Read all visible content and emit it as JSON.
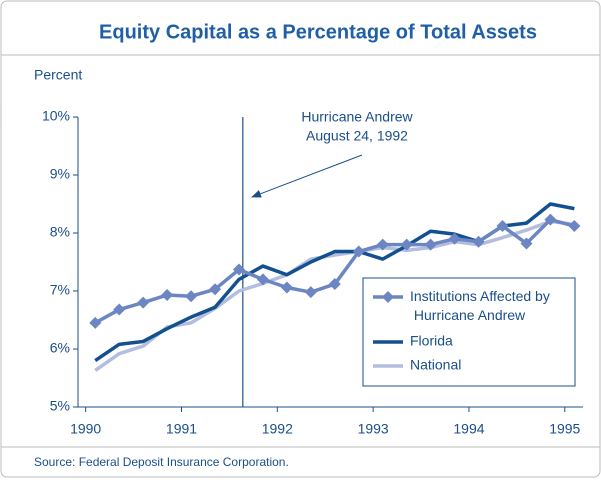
{
  "chart_data": {
    "type": "line",
    "title": "Equity Capital as a Percentage of Total Assets",
    "y_label": "Percent",
    "source": "Source: Federal Deposit Insurance Corporation.",
    "x": [
      1990.1,
      1990.35,
      1990.6,
      1990.85,
      1991.1,
      1991.35,
      1991.6,
      1991.85,
      1992.1,
      1992.35,
      1992.6,
      1992.85,
      1993.1,
      1993.35,
      1993.6,
      1993.85,
      1994.1,
      1994.35,
      1994.6,
      1994.85,
      1995.1
    ],
    "series": [
      {
        "name": "Institutions Affected by Hurricane Andrew",
        "color": "#6b86c2",
        "marker": true,
        "values": [
          6.45,
          6.68,
          6.8,
          6.93,
          6.91,
          7.03,
          7.37,
          7.2,
          7.06,
          6.98,
          7.12,
          7.68,
          7.8,
          7.8,
          7.8,
          7.9,
          7.85,
          8.12,
          7.82,
          8.23,
          8.12
        ]
      },
      {
        "name": "Florida",
        "color": "#13508f",
        "marker": false,
        "values": [
          5.8,
          6.08,
          6.13,
          6.35,
          6.55,
          6.72,
          7.2,
          7.43,
          7.28,
          7.5,
          7.68,
          7.68,
          7.55,
          7.78,
          8.03,
          7.98,
          7.85,
          8.12,
          8.17,
          8.5,
          8.42
        ]
      },
      {
        "name": "National",
        "color": "#b3bde0",
        "marker": false,
        "values": [
          5.63,
          5.92,
          6.05,
          6.38,
          6.45,
          6.7,
          7.0,
          7.13,
          7.28,
          7.55,
          7.62,
          7.68,
          7.75,
          7.7,
          7.75,
          7.85,
          7.8,
          7.92,
          8.05,
          8.2,
          8.15
        ]
      }
    ],
    "xlim": [
      1989.92,
      1995.19
    ],
    "xticks": [
      1990,
      1991,
      1992,
      1993,
      1994,
      1995
    ],
    "ylim": [
      5,
      10
    ],
    "yticks": [
      {
        "value": 5,
        "label": "5%"
      },
      {
        "value": 6,
        "label": "6%"
      },
      {
        "value": 7,
        "label": "7%"
      },
      {
        "value": 8,
        "label": "8%"
      },
      {
        "value": 9,
        "label": "9%"
      },
      {
        "value": 10,
        "label": "10%"
      }
    ],
    "annotation": {
      "x": 1991.64,
      "lines": [
        "Hurricane Andrew",
        "August 24, 1992"
      ]
    },
    "legend": "lower right"
  }
}
